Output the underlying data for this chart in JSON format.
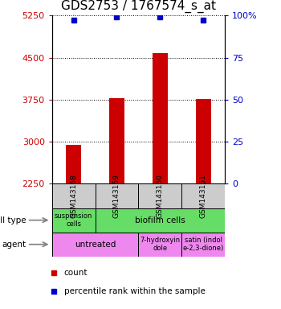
{
  "title": "GDS2753 / 1767574_s_at",
  "samples": [
    "GSM143158",
    "GSM143159",
    "GSM143160",
    "GSM143161"
  ],
  "counts": [
    2950,
    3780,
    4580,
    3760
  ],
  "percentile_ranks": [
    97,
    99,
    99,
    97
  ],
  "ylim_left": [
    2250,
    5250
  ],
  "ylim_right": [
    0,
    100
  ],
  "yticks_left": [
    2250,
    3000,
    3750,
    4500,
    5250
  ],
  "yticks_right": [
    0,
    25,
    50,
    75,
    100
  ],
  "ytick_labels_right": [
    "0",
    "25",
    "50",
    "75",
    "100%"
  ],
  "bar_color": "#cc0000",
  "dot_color": "#0000cc",
  "bar_width": 0.35,
  "gray": "#cccccc",
  "green": "#66dd66",
  "pink": "#ee88ee",
  "grid_style": "dotted",
  "tick_fontsize": 8,
  "title_fontsize": 11,
  "sample_fontsize": 6.5,
  "label_fontsize": 7.5,
  "annotation_fontsize": 7.5,
  "small_fontsize": 6
}
